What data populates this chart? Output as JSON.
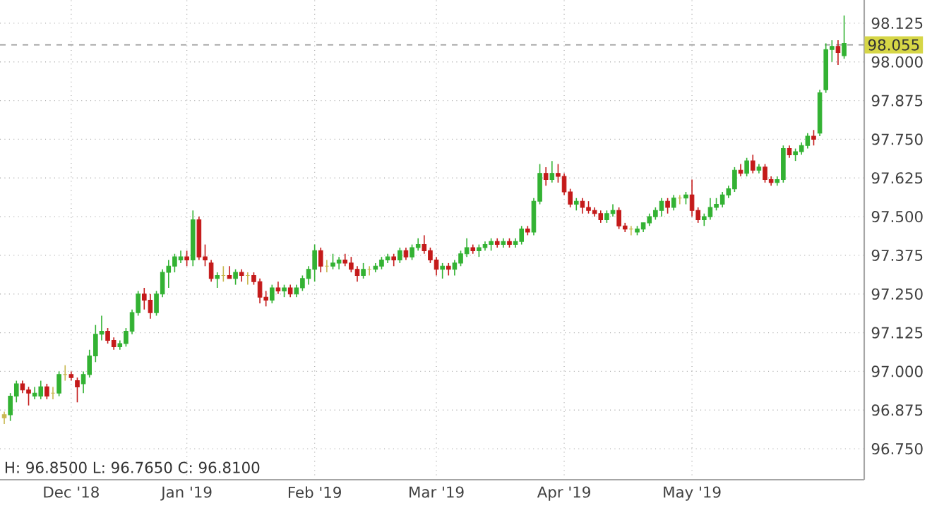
{
  "chart_data": {
    "type": "candlestick",
    "categories": [
      null,
      null,
      null,
      null,
      null,
      null,
      null,
      null,
      null,
      null,
      null,
      "Dec '18",
      null,
      null,
      null,
      null,
      null,
      null,
      null,
      null,
      null,
      null,
      null,
      null,
      null,
      null,
      null,
      null,
      null,
      null,
      "Jan '19",
      null,
      null,
      null,
      null,
      null,
      null,
      null,
      null,
      null,
      null,
      null,
      null,
      null,
      null,
      null,
      null,
      null,
      null,
      null,
      null,
      "Feb '19",
      null,
      null,
      null,
      null,
      null,
      null,
      null,
      null,
      null,
      null,
      null,
      null,
      null,
      null,
      null,
      null,
      null,
      null,
      null,
      "Mar '19",
      null,
      null,
      null,
      null,
      null,
      null,
      null,
      null,
      null,
      null,
      null,
      null,
      null,
      null,
      null,
      null,
      null,
      null,
      null,
      null,
      "Apr '19",
      null,
      null,
      null,
      null,
      null,
      null,
      null,
      null,
      null,
      null,
      null,
      null,
      null,
      null,
      null,
      null,
      null,
      null,
      null,
      null,
      "May '19",
      null,
      null,
      null,
      null,
      null,
      null,
      null,
      null,
      null,
      null,
      null,
      null,
      null,
      null,
      null,
      null,
      null,
      null,
      null,
      null,
      null,
      null,
      null,
      null,
      null
    ],
    "ohlc": [
      [
        96.85,
        96.87,
        96.83,
        96.86
      ],
      [
        96.86,
        96.93,
        96.84,
        96.92
      ],
      [
        96.92,
        96.97,
        96.9,
        96.96
      ],
      [
        96.96,
        96.97,
        96.93,
        96.94
      ],
      [
        96.94,
        96.95,
        96.89,
        96.93
      ],
      [
        96.92,
        96.95,
        96.91,
        96.93
      ],
      [
        96.92,
        96.97,
        96.91,
        96.95
      ],
      [
        96.95,
        96.96,
        96.91,
        96.92
      ],
      [
        96.93,
        96.95,
        96.91,
        96.93
      ],
      [
        96.93,
        97.0,
        96.92,
        96.99
      ],
      [
        96.99,
        97.02,
        96.97,
        96.99
      ],
      [
        96.99,
        97.0,
        96.97,
        96.98
      ],
      [
        96.97,
        96.98,
        96.9,
        96.95
      ],
      [
        96.96,
        97.0,
        96.93,
        96.99
      ],
      [
        96.99,
        97.07,
        96.98,
        97.05
      ],
      [
        97.05,
        97.15,
        97.03,
        97.12
      ],
      [
        97.12,
        97.18,
        97.1,
        97.13
      ],
      [
        97.13,
        97.14,
        97.09,
        97.1
      ],
      [
        97.1,
        97.11,
        97.07,
        97.08
      ],
      [
        97.08,
        97.1,
        97.07,
        97.09
      ],
      [
        97.09,
        97.14,
        97.08,
        97.13
      ],
      [
        97.13,
        97.2,
        97.12,
        97.19
      ],
      [
        97.19,
        97.26,
        97.18,
        97.25
      ],
      [
        97.25,
        97.27,
        97.2,
        97.23
      ],
      [
        97.23,
        97.25,
        97.17,
        97.19
      ],
      [
        97.19,
        97.26,
        97.18,
        97.25
      ],
      [
        97.25,
        97.33,
        97.24,
        97.32
      ],
      [
        97.32,
        97.36,
        97.27,
        97.34
      ],
      [
        97.34,
        97.38,
        97.32,
        97.37
      ],
      [
        97.36,
        97.39,
        97.35,
        97.37
      ],
      [
        97.37,
        97.39,
        97.34,
        97.36
      ],
      [
        97.36,
        97.52,
        97.34,
        97.49
      ],
      [
        97.49,
        97.5,
        97.36,
        97.37
      ],
      [
        97.37,
        97.41,
        97.34,
        97.36
      ],
      [
        97.35,
        97.36,
        97.29,
        97.3
      ],
      [
        97.3,
        97.32,
        97.27,
        97.31
      ],
      [
        97.31,
        97.34,
        97.29,
        97.31
      ],
      [
        97.31,
        97.34,
        97.3,
        97.3
      ],
      [
        97.3,
        97.33,
        97.28,
        97.32
      ],
      [
        97.32,
        97.33,
        97.29,
        97.31
      ],
      [
        97.31,
        97.32,
        97.28,
        97.31
      ],
      [
        97.31,
        97.32,
        97.28,
        97.29
      ],
      [
        97.29,
        97.3,
        97.22,
        97.24
      ],
      [
        97.24,
        97.26,
        97.21,
        97.23
      ],
      [
        97.23,
        97.28,
        97.22,
        97.27
      ],
      [
        97.27,
        97.29,
        97.25,
        97.26
      ],
      [
        97.26,
        97.28,
        97.24,
        97.27
      ],
      [
        97.27,
        97.28,
        97.24,
        97.25
      ],
      [
        97.25,
        97.28,
        97.24,
        97.27
      ],
      [
        97.27,
        97.31,
        97.26,
        97.3
      ],
      [
        97.3,
        97.34,
        97.28,
        97.33
      ],
      [
        97.33,
        97.41,
        97.29,
        97.39
      ],
      [
        97.39,
        97.4,
        97.32,
        97.34
      ],
      [
        97.34,
        97.36,
        97.32,
        97.34
      ],
      [
        97.34,
        97.38,
        97.33,
        97.35
      ],
      [
        97.35,
        97.37,
        97.33,
        97.36
      ],
      [
        97.36,
        97.38,
        97.34,
        97.35
      ],
      [
        97.35,
        97.37,
        97.32,
        97.33
      ],
      [
        97.33,
        97.34,
        97.29,
        97.31
      ],
      [
        97.31,
        97.35,
        97.3,
        97.33
      ],
      [
        97.33,
        97.34,
        97.31,
        97.33
      ],
      [
        97.33,
        97.35,
        97.32,
        97.34
      ],
      [
        97.34,
        97.37,
        97.33,
        97.36
      ],
      [
        97.36,
        97.38,
        97.35,
        97.37
      ],
      [
        97.37,
        97.38,
        97.34,
        97.36
      ],
      [
        97.36,
        97.4,
        97.35,
        97.39
      ],
      [
        97.39,
        97.4,
        97.36,
        97.37
      ],
      [
        97.37,
        97.41,
        97.36,
        97.4
      ],
      [
        97.4,
        97.43,
        97.39,
        97.41
      ],
      [
        97.41,
        97.44,
        97.38,
        97.39
      ],
      [
        97.39,
        97.4,
        97.35,
        97.36
      ],
      [
        97.36,
        97.37,
        97.31,
        97.33
      ],
      [
        97.33,
        97.35,
        97.3,
        97.34
      ],
      [
        97.34,
        97.35,
        97.31,
        97.33
      ],
      [
        97.33,
        97.36,
        97.31,
        97.35
      ],
      [
        97.35,
        97.39,
        97.34,
        97.38
      ],
      [
        97.38,
        97.43,
        97.37,
        97.4
      ],
      [
        97.4,
        97.41,
        97.38,
        97.39
      ],
      [
        97.39,
        97.41,
        97.37,
        97.4
      ],
      [
        97.4,
        97.42,
        97.39,
        97.41
      ],
      [
        97.41,
        97.43,
        97.39,
        97.42
      ],
      [
        97.42,
        97.43,
        97.4,
        97.41
      ],
      [
        97.41,
        97.43,
        97.4,
        97.42
      ],
      [
        97.42,
        97.43,
        97.4,
        97.41
      ],
      [
        97.41,
        97.43,
        97.4,
        97.42
      ],
      [
        97.42,
        97.47,
        97.41,
        97.46
      ],
      [
        97.46,
        97.47,
        97.44,
        97.45
      ],
      [
        97.45,
        97.56,
        97.44,
        97.55
      ],
      [
        97.55,
        97.67,
        97.54,
        97.64
      ],
      [
        97.64,
        97.66,
        97.6,
        97.62
      ],
      [
        97.62,
        97.68,
        97.61,
        97.64
      ],
      [
        97.64,
        97.67,
        97.61,
        97.63
      ],
      [
        97.63,
        97.64,
        97.57,
        97.58
      ],
      [
        97.58,
        97.59,
        97.53,
        97.54
      ],
      [
        97.54,
        97.56,
        97.52,
        97.55
      ],
      [
        97.55,
        97.56,
        97.51,
        97.53
      ],
      [
        97.53,
        97.55,
        97.51,
        97.52
      ],
      [
        97.52,
        97.53,
        97.5,
        97.51
      ],
      [
        97.51,
        97.52,
        97.48,
        97.49
      ],
      [
        97.49,
        97.52,
        97.48,
        97.51
      ],
      [
        97.51,
        97.54,
        97.5,
        97.52
      ],
      [
        97.52,
        97.53,
        97.46,
        97.47
      ],
      [
        97.47,
        97.48,
        97.45,
        97.46
      ],
      [
        97.46,
        97.47,
        97.44,
        97.46
      ],
      [
        97.45,
        97.47,
        97.44,
        97.46
      ],
      [
        97.46,
        97.48,
        97.45,
        97.48
      ],
      [
        97.48,
        97.51,
        97.47,
        97.5
      ],
      [
        97.5,
        97.53,
        97.49,
        97.52
      ],
      [
        97.52,
        97.56,
        97.5,
        97.55
      ],
      [
        97.55,
        97.56,
        97.51,
        97.53
      ],
      [
        97.53,
        97.57,
        97.52,
        97.56
      ],
      [
        97.56,
        97.57,
        97.54,
        97.56
      ],
      [
        97.56,
        97.58,
        97.54,
        97.57
      ],
      [
        97.57,
        97.62,
        97.5,
        97.52
      ],
      [
        97.52,
        97.53,
        97.48,
        97.49
      ],
      [
        97.49,
        97.51,
        97.47,
        97.5
      ],
      [
        97.5,
        97.56,
        97.49,
        97.53
      ],
      [
        97.53,
        97.56,
        97.52,
        97.54
      ],
      [
        97.54,
        97.58,
        97.53,
        97.57
      ],
      [
        97.57,
        97.6,
        97.56,
        97.59
      ],
      [
        97.59,
        97.66,
        97.58,
        97.65
      ],
      [
        97.65,
        97.67,
        97.63,
        97.64
      ],
      [
        97.64,
        97.69,
        97.63,
        97.68
      ],
      [
        97.68,
        97.7,
        97.64,
        97.65
      ],
      [
        97.65,
        97.67,
        97.64,
        97.66
      ],
      [
        97.66,
        97.67,
        97.61,
        97.62
      ],
      [
        97.62,
        97.63,
        97.6,
        97.61
      ],
      [
        97.61,
        97.63,
        97.6,
        97.62
      ],
      [
        97.62,
        97.73,
        97.61,
        97.72
      ],
      [
        97.72,
        97.73,
        97.69,
        97.7
      ],
      [
        97.7,
        97.72,
        97.68,
        97.71
      ],
      [
        97.71,
        97.74,
        97.7,
        97.73
      ],
      [
        97.73,
        97.77,
        97.72,
        97.76
      ],
      [
        97.76,
        97.78,
        97.73,
        97.75
      ],
      [
        97.77,
        97.91,
        97.76,
        97.9
      ],
      [
        97.91,
        98.06,
        97.9,
        98.04
      ],
      [
        98.04,
        98.07,
        98.0,
        98.05
      ],
      [
        98.05,
        98.07,
        97.99,
        98.03
      ],
      [
        98.02,
        98.15,
        98.01,
        98.06
      ]
    ],
    "colors": [
      "#c8b850",
      "#33b233",
      "#33b233",
      "#c41a1a",
      "#c41a1a",
      "#33b233",
      "#33b233",
      "#c41a1a",
      "#c8b850",
      "#33b233",
      "#c8b850",
      "#c41a1a",
      "#c41a1a",
      "#33b233",
      "#33b233",
      "#33b233",
      "#33b233",
      "#c41a1a",
      "#c41a1a",
      "#33b233",
      "#33b233",
      "#33b233",
      "#33b233",
      "#c41a1a",
      "#c41a1a",
      "#33b233",
      "#33b233",
      "#33b233",
      "#33b233",
      "#33b233",
      "#c41a1a",
      "#33b233",
      "#c41a1a",
      "#c41a1a",
      "#c41a1a",
      "#33b233",
      "#c8b850",
      "#c41a1a",
      "#33b233",
      "#c41a1a",
      "#c8b850",
      "#c41a1a",
      "#c41a1a",
      "#c41a1a",
      "#33b233",
      "#c41a1a",
      "#33b233",
      "#c41a1a",
      "#33b233",
      "#33b233",
      "#33b233",
      "#33b233",
      "#c41a1a",
      "#c8b850",
      "#33b233",
      "#33b233",
      "#c41a1a",
      "#c41a1a",
      "#c41a1a",
      "#33b233",
      "#c8b850",
      "#33b233",
      "#33b233",
      "#33b233",
      "#c41a1a",
      "#33b233",
      "#c41a1a",
      "#33b233",
      "#33b233",
      "#c41a1a",
      "#c41a1a",
      "#c41a1a",
      "#33b233",
      "#c41a1a",
      "#33b233",
      "#33b233",
      "#33b233",
      "#c41a1a",
      "#33b233",
      "#33b233",
      "#33b233",
      "#c41a1a",
      "#33b233",
      "#c41a1a",
      "#33b233",
      "#33b233",
      "#c41a1a",
      "#33b233",
      "#33b233",
      "#c41a1a",
      "#33b233",
      "#c41a1a",
      "#c41a1a",
      "#c41a1a",
      "#33b233",
      "#c41a1a",
      "#c41a1a",
      "#c41a1a",
      "#c41a1a",
      "#33b233",
      "#33b233",
      "#c41a1a",
      "#c41a1a",
      "#c8b850",
      "#33b233",
      "#33b233",
      "#33b233",
      "#33b233",
      "#33b233",
      "#c41a1a",
      "#33b233",
      "#c8b850",
      "#33b233",
      "#c41a1a",
      "#c41a1a",
      "#33b233",
      "#33b233",
      "#33b233",
      "#33b233",
      "#33b233",
      "#33b233",
      "#c41a1a",
      "#33b233",
      "#c41a1a",
      "#33b233",
      "#c41a1a",
      "#c41a1a",
      "#33b233",
      "#33b233",
      "#c41a1a",
      "#33b233",
      "#33b233",
      "#33b233",
      "#c41a1a",
      "#33b233",
      "#33b233",
      "#33b233",
      "#c41a1a",
      "#33b233"
    ],
    "ylim": [
      96.65,
      98.2
    ],
    "yticks": [
      {
        "value": 96.75,
        "label": "96.750"
      },
      {
        "value": 96.875,
        "label": "96.875"
      },
      {
        "value": 97.0,
        "label": "97.000"
      },
      {
        "value": 97.125,
        "label": "97.125"
      },
      {
        "value": 97.25,
        "label": "97.250"
      },
      {
        "value": 97.375,
        "label": "97.375"
      },
      {
        "value": 97.5,
        "label": "97.500"
      },
      {
        "value": 97.625,
        "label": "97.625"
      },
      {
        "value": 97.75,
        "label": "97.750"
      },
      {
        "value": 97.875,
        "label": "97.875"
      },
      {
        "value": 98.0,
        "label": "98.000"
      },
      {
        "value": 98.125,
        "label": "98.125"
      }
    ],
    "grid": true,
    "ref_lines": [
      {
        "axis": "y",
        "value": 98.055,
        "label": "98.055",
        "color": "#999999",
        "line_style": "dashed"
      }
    ],
    "annotations": [
      "H: 96.8500  L: 96.7650  C: 96.8100"
    ]
  }
}
